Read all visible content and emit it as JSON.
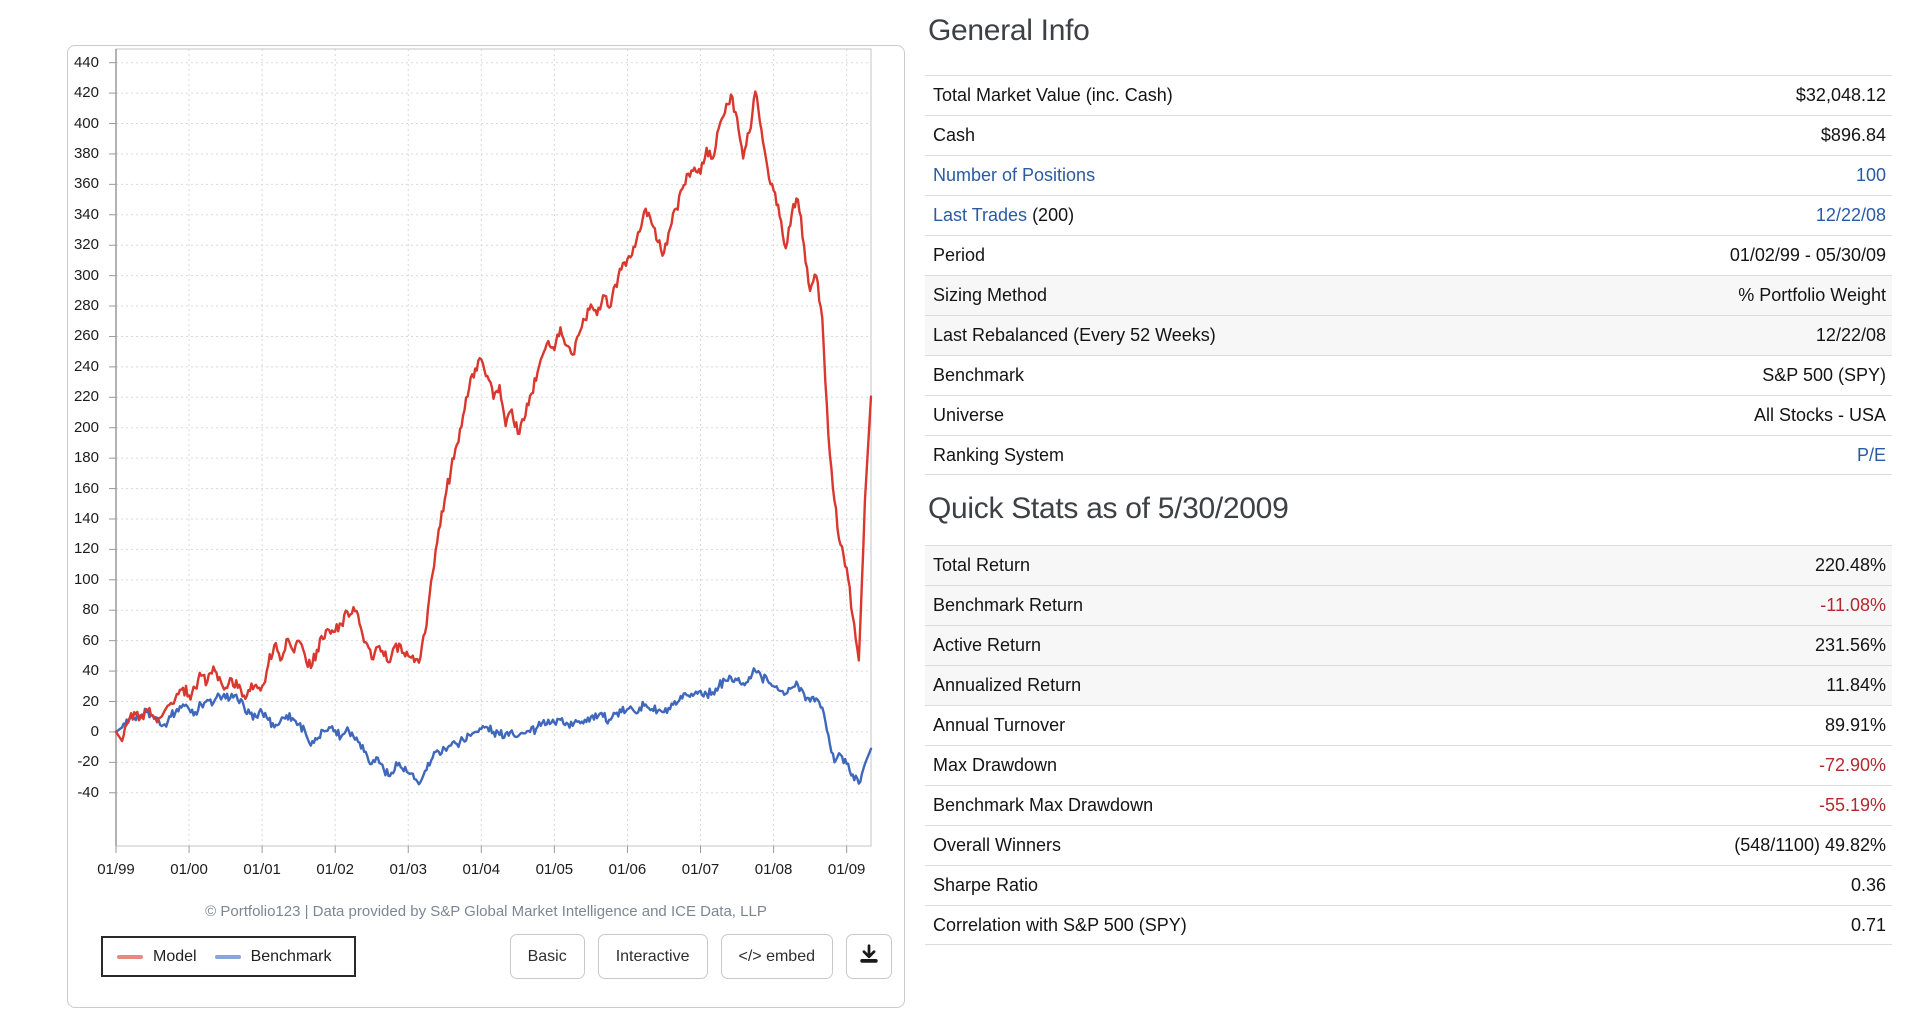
{
  "chart_card": {
    "attribution": "© Portfolio123 | Data provided by S&P Global Market Intelligence and ICE Data, LLP",
    "legend": [
      {
        "label": "Model",
        "color": "#d9382e"
      },
      {
        "label": "Benchmark",
        "color": "#3f68bd"
      }
    ],
    "buttons": {
      "basic": "Basic",
      "interactive": "Interactive",
      "embed": "</> embed"
    }
  },
  "chart_data": {
    "type": "line",
    "title": "",
    "xlabel": "",
    "ylabel": "",
    "x_tick_labels": [
      "01/99",
      "01/00",
      "01/01",
      "01/02",
      "01/03",
      "01/04",
      "01/05",
      "01/06",
      "01/07",
      "01/08",
      "01/09"
    ],
    "y_ticks": [
      440,
      420,
      400,
      380,
      360,
      340,
      320,
      300,
      280,
      260,
      240,
      220,
      200,
      180,
      160,
      140,
      120,
      100,
      80,
      60,
      40,
      20,
      0,
      -20,
      -40
    ],
    "ylim": [
      -75,
      449
    ],
    "grid": true,
    "legend_position": "bottom-left",
    "x_start": "1999-01",
    "x_end": "2009-05",
    "x_unit": "month",
    "series": [
      {
        "name": "Model",
        "color": "#d9382e",
        "noise_amp": 4,
        "values": [
          0,
          -6,
          7,
          13,
          9,
          15,
          11,
          9,
          14,
          19,
          25,
          29,
          24,
          29,
          37,
          33,
          43,
          36,
          29,
          35,
          29,
          24,
          27,
          31,
          30,
          44,
          57,
          47,
          61,
          54,
          60,
          51,
          42,
          54,
          61,
          67,
          66,
          71,
          79,
          82,
          71,
          59,
          48,
          56,
          50,
          46,
          58,
          52,
          50,
          46,
          49,
          70,
          104,
          133,
          153,
          172,
          189,
          208,
          226,
          239,
          245,
          234,
          219,
          228,
          201,
          212,
          196,
          205,
          221,
          231,
          247,
          257,
          251,
          266,
          254,
          248,
          261,
          271,
          281,
          274,
          287,
          279,
          294,
          304,
          311,
          319,
          329,
          344,
          334,
          322,
          315,
          331,
          344,
          357,
          367,
          371,
          367,
          384,
          377,
          397,
          407,
          419,
          404,
          377,
          394,
          421,
          396,
          371,
          356,
          339,
          318,
          341,
          350,
          320,
          290,
          300,
          272,
          195,
          152,
          123,
          108,
          76,
          47,
          152,
          220.48
        ]
      },
      {
        "name": "Benchmark",
        "color": "#3f68bd",
        "noise_amp": 3,
        "values": [
          0,
          3,
          6,
          9,
          11,
          13,
          11,
          8,
          5,
          10,
          15,
          18,
          15,
          13,
          18,
          21,
          19,
          24,
          22,
          25,
          21,
          17,
          12,
          10,
          13,
          8,
          3,
          7,
          11,
          9,
          5,
          1,
          -9,
          -5,
          1,
          3,
          1,
          -3,
          3,
          -3,
          -7,
          -13,
          -21,
          -17,
          -25,
          -29,
          -20,
          -24,
          -27,
          -31,
          -33,
          -25,
          -17,
          -13,
          -11,
          -9,
          -8,
          -5,
          -2,
          0,
          2,
          3,
          0,
          -2,
          -1,
          1,
          -3,
          -1,
          0,
          2,
          6,
          8,
          6,
          8,
          6,
          4,
          7,
          8,
          10,
          9,
          10,
          8,
          12,
          13,
          15,
          14,
          16,
          18,
          15,
          14,
          13,
          15,
          18,
          22,
          24,
          25,
          27,
          25,
          26,
          30,
          34,
          36,
          34,
          32,
          36,
          40,
          36,
          34,
          30,
          27,
          25,
          29,
          31,
          25,
          20,
          22,
          16,
          -2,
          -20,
          -15,
          -21,
          -28,
          -34,
          -21,
          -11.08
        ]
      }
    ]
  },
  "general_info": {
    "title": "General Info",
    "rows": [
      {
        "label": "Total Market Value (inc. Cash)",
        "value": "$32,048.12",
        "value_style": "plain",
        "shaded": false
      },
      {
        "label": "Cash",
        "value": "$896.84",
        "value_style": "plain",
        "shaded": false
      },
      {
        "label": "Number of Positions",
        "label_is_link": true,
        "value": "100",
        "value_style": "link",
        "shaded": false
      },
      {
        "label": "Last Trades",
        "label_is_link": true,
        "label_suffix": " (200)",
        "value": "12/22/08",
        "value_style": "link",
        "shaded": false
      },
      {
        "label": "Period",
        "value": "01/02/99 - 05/30/09",
        "value_style": "plain",
        "shaded": false
      },
      {
        "label": "Sizing Method",
        "value": "% Portfolio Weight",
        "value_style": "plain",
        "shaded": true
      },
      {
        "label": "Last Rebalanced (Every 52 Weeks)",
        "value": "12/22/08",
        "value_style": "plain",
        "shaded": true
      },
      {
        "label": "Benchmark",
        "value": "S&P 500 (SPY)",
        "value_style": "plain",
        "shaded": false
      },
      {
        "label": "Universe",
        "value": "All Stocks - USA",
        "value_style": "plain",
        "shaded": false
      },
      {
        "label": "Ranking System",
        "value": "P/E",
        "value_style": "link",
        "shaded": false
      }
    ]
  },
  "quick_stats": {
    "title": "Quick Stats as of 5/30/2009",
    "rows": [
      {
        "label": "Total Return",
        "value": "220.48%",
        "value_style": "plain",
        "shaded": true
      },
      {
        "label": "Benchmark Return",
        "value": "-11.08%",
        "value_style": "negative",
        "shaded": true
      },
      {
        "label": "Active Return",
        "value": "231.56%",
        "value_style": "plain",
        "shaded": true
      },
      {
        "label": "Annualized Return",
        "value": "11.84%",
        "value_style": "plain",
        "shaded": true
      },
      {
        "label": "Annual Turnover",
        "value": "89.91%",
        "value_style": "plain",
        "shaded": false
      },
      {
        "label": "Max Drawdown",
        "value": "-72.90%",
        "value_style": "negative",
        "shaded": false
      },
      {
        "label": "Benchmark Max Drawdown",
        "value": "-55.19%",
        "value_style": "negative",
        "shaded": false
      },
      {
        "label": "Overall Winners",
        "value": "(548/1100) 49.82%",
        "value_style": "plain",
        "shaded": false
      },
      {
        "label": "Sharpe Ratio",
        "value": "0.36",
        "value_style": "plain",
        "shaded": false
      },
      {
        "label": "Correlation with S&P 500 (SPY)",
        "value": "0.71",
        "value_style": "plain",
        "shaded": false
      }
    ]
  }
}
